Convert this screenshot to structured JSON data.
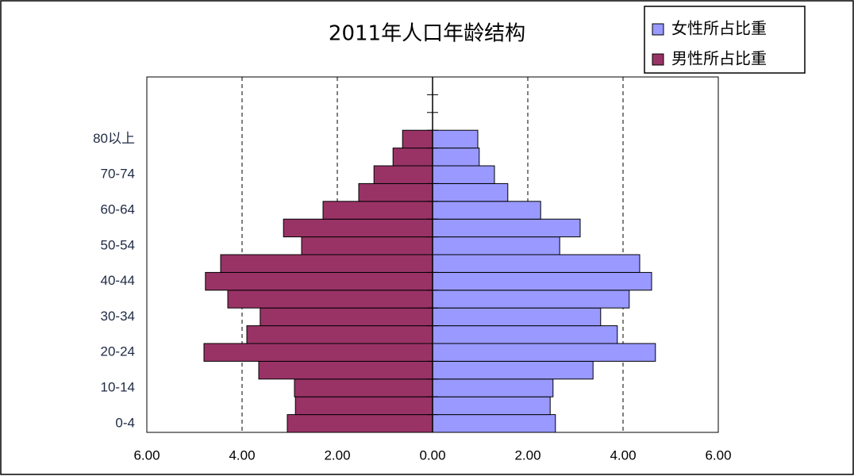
{
  "chart_data": {
    "type": "pyramid",
    "title": "2011年人口年龄结构",
    "categories": [
      "0-4",
      null,
      "10-14",
      null,
      "20-24",
      null,
      "30-34",
      null,
      "40-44",
      null,
      "50-54",
      null,
      "60-64",
      null,
      "70-74",
      null,
      "80以上",
      null,
      null,
      null
    ],
    "series": [
      {
        "name": "女性所占比重",
        "color": "#9999ff",
        "values": [
          2.58,
          2.47,
          2.53,
          3.37,
          4.68,
          3.88,
          3.53,
          4.13,
          4.6,
          4.35,
          2.67,
          3.1,
          2.27,
          1.58,
          1.3,
          0.98,
          0.95,
          null,
          null,
          null
        ]
      },
      {
        "name": "男性所占比重",
        "color": "#993366",
        "values": [
          -3.05,
          -2.88,
          -2.9,
          -3.65,
          -4.8,
          -3.9,
          -3.62,
          -4.3,
          -4.77,
          -4.45,
          -2.75,
          -3.13,
          -2.3,
          -1.55,
          -1.23,
          -0.83,
          -0.63,
          null,
          null,
          null
        ]
      }
    ],
    "xlim": [
      -6,
      6
    ],
    "xticks": [
      {
        "value": -6,
        "label": "6.00"
      },
      {
        "value": -4,
        "label": "4.00"
      },
      {
        "value": -2,
        "label": "2.00"
      },
      {
        "value": 0,
        "label": "0.00"
      },
      {
        "value": 2,
        "label": "2.00"
      },
      {
        "value": 4,
        "label": "4.00"
      },
      {
        "value": 6,
        "label": "6.00"
      }
    ],
    "negative_tick_color": "#ff0000",
    "grid": "dashed",
    "legend": "top-right"
  }
}
